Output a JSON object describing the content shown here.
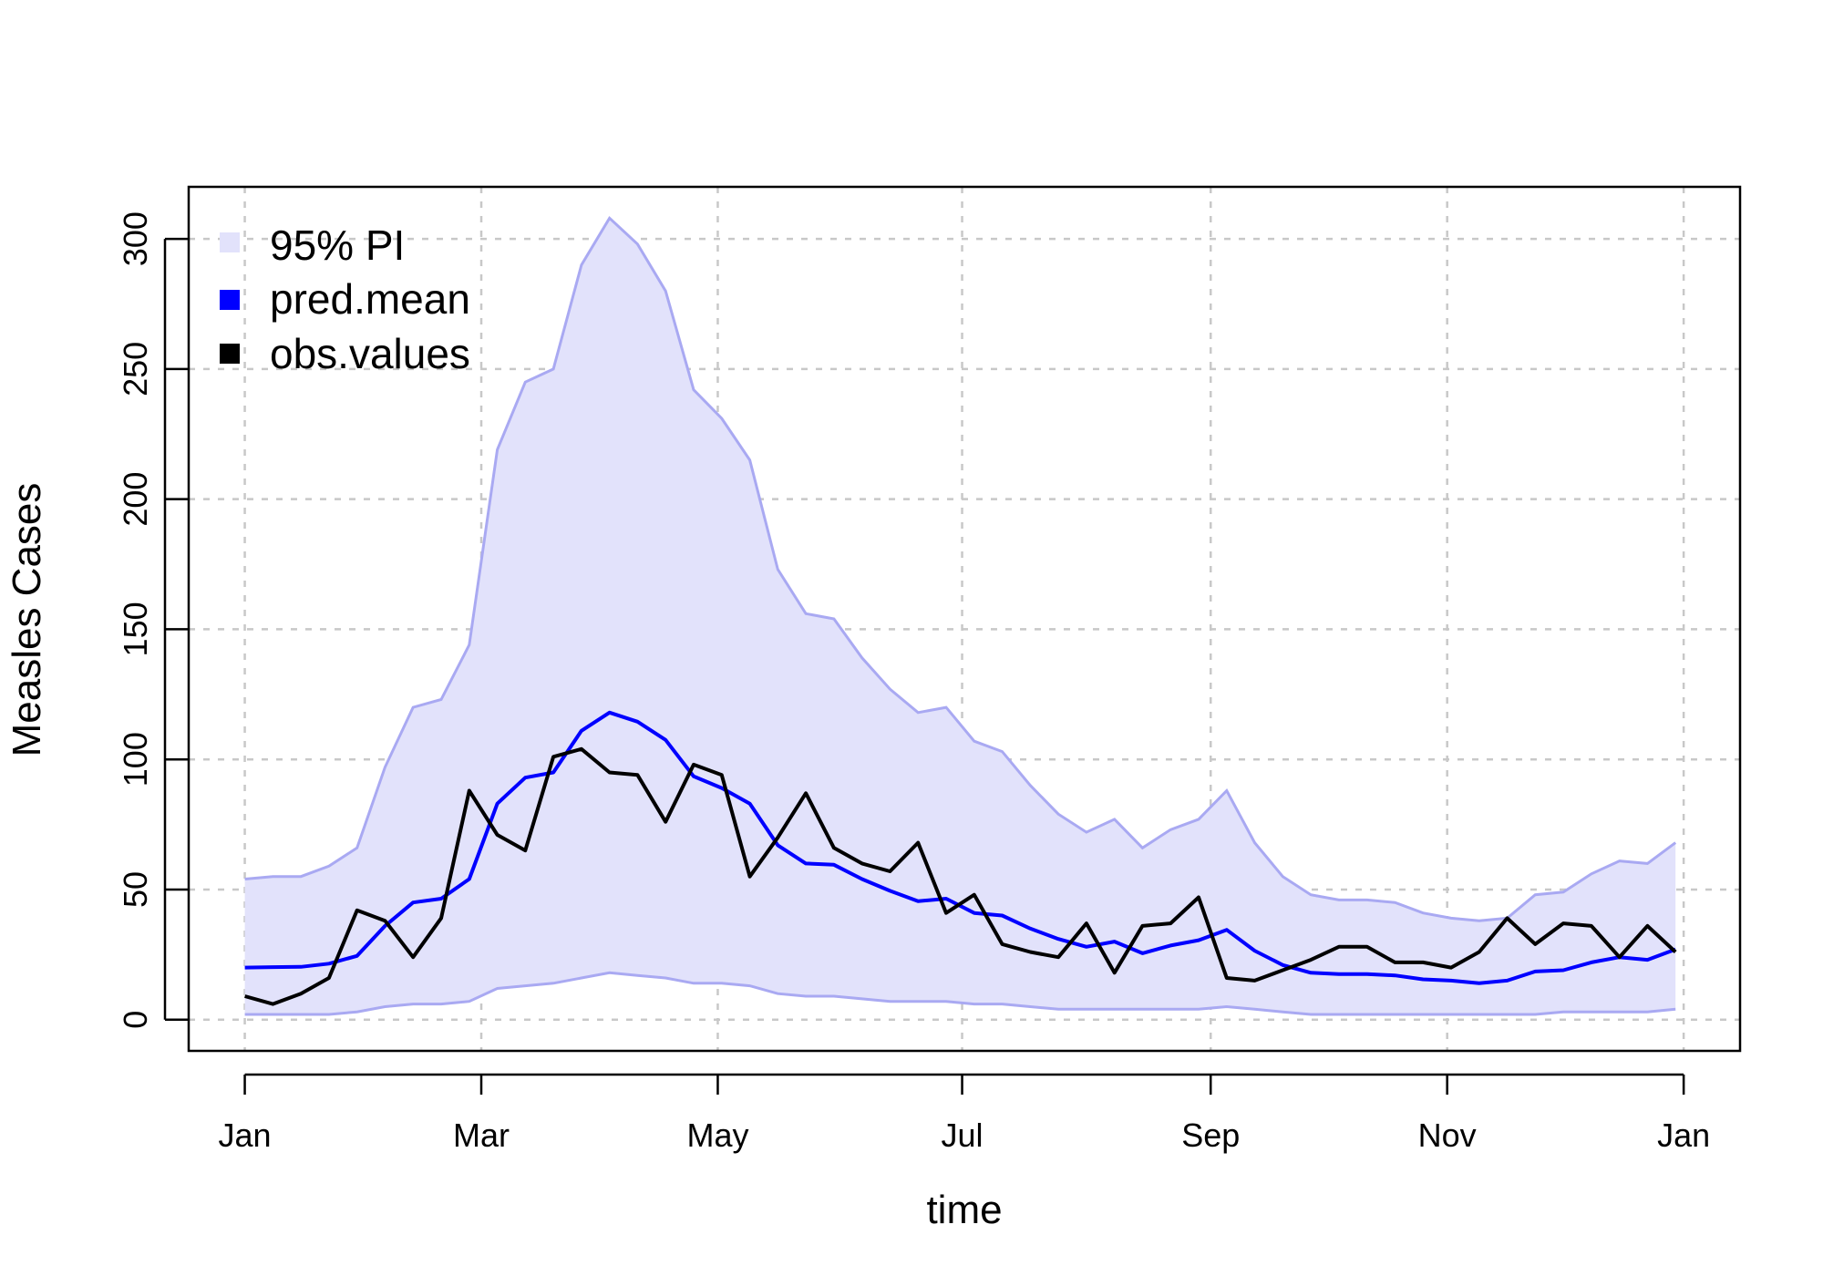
{
  "chart_data": {
    "type": "line",
    "xlabel": "time",
    "ylabel": "Measles Cases",
    "x_tick_labels": [
      "Jan",
      "Mar",
      "May",
      "Jul",
      "Sep",
      "Nov",
      "Jan"
    ],
    "x_tick_weeks": [
      0,
      8.43,
      16.86,
      25.57,
      34.43,
      42.86,
      51.29
    ],
    "x_unit": "weeks since start of year",
    "y_ticks": [
      0,
      50,
      100,
      150,
      200,
      250,
      300
    ],
    "ylim": [
      -12,
      320
    ],
    "xlim": [
      -2,
      53.3
    ],
    "grid": true,
    "legend_position": "top-left",
    "legend": [
      {
        "label": "95% PI",
        "color": "#e2e2fb"
      },
      {
        "label": "pred.mean",
        "color": "#0000ff"
      },
      {
        "label": "obs.values",
        "color": "#000000"
      }
    ],
    "series": [
      {
        "name": "95% PI",
        "kind": "band",
        "fill": "#e2e2fb",
        "stroke": "#a9a9f2",
        "upper": [
          54,
          55,
          55,
          59,
          66,
          97,
          120,
          123,
          144,
          219,
          245,
          250,
          290,
          308,
          298,
          280,
          242,
          231,
          215,
          173,
          156,
          154,
          139,
          127,
          118,
          120,
          107,
          103,
          90,
          79,
          72,
          77,
          66,
          73,
          77,
          88,
          68,
          55,
          48,
          46,
          46,
          45,
          41,
          39,
          38,
          39,
          48,
          49,
          56,
          61,
          60,
          68
        ],
        "lower": [
          2,
          2,
          2,
          2,
          3,
          5,
          6,
          6,
          7,
          12,
          13,
          14,
          16,
          18,
          17,
          16,
          14,
          14,
          13,
          10,
          9,
          9,
          8,
          7,
          7,
          7,
          6,
          6,
          5,
          4,
          4,
          4,
          4,
          4,
          4,
          5,
          4,
          3,
          2,
          2,
          2,
          2,
          2,
          2,
          2,
          2,
          2,
          3,
          3,
          3,
          3,
          4
        ]
      },
      {
        "name": "pred.mean",
        "kind": "line",
        "color": "#0000ff",
        "values": [
          20,
          20.2,
          20.3,
          21.5,
          24.5,
          36,
          45,
          46.5,
          54,
          83,
          93,
          95,
          111,
          118,
          114.5,
          107.5,
          93.5,
          89,
          83,
          67,
          60,
          59.5,
          54,
          49.5,
          45.5,
          46.5,
          41,
          40,
          35,
          31,
          28,
          30,
          25.5,
          28.5,
          30.5,
          34.5,
          26.5,
          21,
          18,
          17.5,
          17.5,
          17,
          15.5,
          15,
          14,
          15,
          18.5,
          19,
          22,
          24,
          23,
          27
        ]
      },
      {
        "name": "obs.values",
        "kind": "line",
        "color": "#000000",
        "values": [
          9,
          6,
          10,
          16,
          42,
          38,
          24,
          39,
          88,
          71,
          65,
          101,
          104,
          95,
          94,
          76,
          98,
          94,
          55,
          70,
          87,
          66,
          60,
          57,
          68,
          41,
          48,
          29,
          26,
          24,
          37,
          18,
          36,
          37,
          47,
          16,
          15,
          19,
          23,
          28,
          28,
          22,
          22,
          20,
          26,
          39,
          29,
          37,
          36,
          24,
          36,
          26
        ]
      }
    ]
  }
}
